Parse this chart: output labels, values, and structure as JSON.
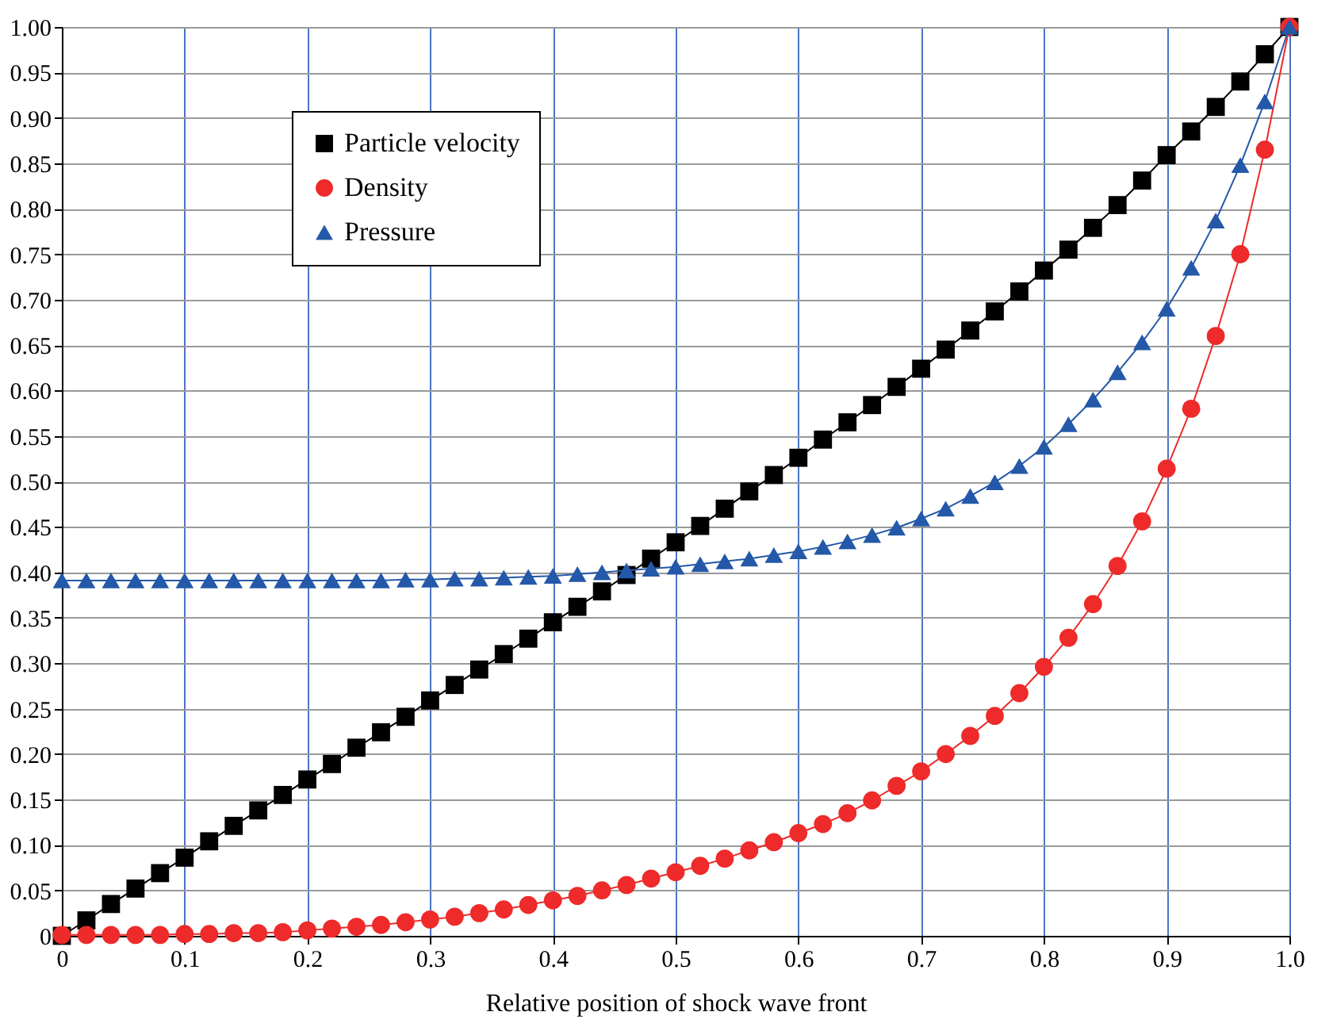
{
  "chart_data": {
    "type": "line",
    "xlabel": "Relative position of shock wave front",
    "x": [
      0,
      0.02,
      0.04,
      0.06,
      0.08,
      0.1,
      0.12,
      0.14,
      0.16,
      0.18,
      0.2,
      0.22,
      0.24,
      0.26,
      0.28,
      0.3,
      0.32,
      0.34,
      0.36,
      0.38,
      0.4,
      0.42,
      0.44,
      0.46,
      0.48,
      0.5,
      0.52,
      0.54,
      0.56,
      0.58,
      0.6,
      0.62,
      0.64,
      0.66,
      0.68,
      0.7,
      0.72,
      0.74,
      0.76,
      0.78,
      0.8,
      0.82,
      0.84,
      0.86,
      0.88,
      0.9,
      0.92,
      0.94,
      0.96,
      0.98,
      1.0
    ],
    "series": [
      {
        "name": "Particle velocity",
        "color": "#000000",
        "marker": "square",
        "values": [
          0,
          0.017,
          0.035,
          0.052,
          0.069,
          0.086,
          0.104,
          0.121,
          0.138,
          0.155,
          0.172,
          0.189,
          0.207,
          0.224,
          0.241,
          0.259,
          0.276,
          0.293,
          0.31,
          0.327,
          0.345,
          0.362,
          0.379,
          0.397,
          0.415,
          0.433,
          0.451,
          0.47,
          0.489,
          0.507,
          0.526,
          0.546,
          0.565,
          0.584,
          0.604,
          0.624,
          0.645,
          0.666,
          0.687,
          0.709,
          0.732,
          0.755,
          0.779,
          0.804,
          0.831,
          0.859,
          0.885,
          0.912,
          0.94,
          0.97,
          1.0
        ]
      },
      {
        "name": "Density",
        "color": "#ee2a2a",
        "marker": "circle",
        "values": [
          0.001,
          0.001,
          0.001,
          0.001,
          0.001,
          0.002,
          0.002,
          0.003,
          0.003,
          0.004,
          0.006,
          0.008,
          0.01,
          0.012,
          0.015,
          0.018,
          0.021,
          0.025,
          0.029,
          0.034,
          0.039,
          0.044,
          0.05,
          0.056,
          0.063,
          0.07,
          0.077,
          0.085,
          0.094,
          0.103,
          0.113,
          0.123,
          0.135,
          0.149,
          0.165,
          0.181,
          0.2,
          0.22,
          0.242,
          0.267,
          0.296,
          0.328,
          0.365,
          0.407,
          0.456,
          0.514,
          0.58,
          0.66,
          0.75,
          0.865,
          1.0
        ]
      },
      {
        "name": "Pressure",
        "color": "#2458a8",
        "marker": "triangle",
        "values": [
          0.391,
          0.391,
          0.391,
          0.391,
          0.391,
          0.391,
          0.391,
          0.391,
          0.391,
          0.391,
          0.391,
          0.391,
          0.391,
          0.391,
          0.392,
          0.392,
          0.393,
          0.393,
          0.394,
          0.395,
          0.396,
          0.398,
          0.4,
          0.402,
          0.404,
          0.406,
          0.409,
          0.412,
          0.415,
          0.419,
          0.423,
          0.428,
          0.434,
          0.441,
          0.449,
          0.459,
          0.47,
          0.484,
          0.499,
          0.517,
          0.538,
          0.563,
          0.59,
          0.62,
          0.653,
          0.69,
          0.735,
          0.787,
          0.848,
          0.918,
          1.0
        ]
      }
    ],
    "xlim": [
      0,
      1.0
    ],
    "ylim": [
      0,
      1.0
    ],
    "xticks": [
      0,
      0.1,
      0.2,
      0.3,
      0.4,
      0.5,
      0.6,
      0.7,
      0.8,
      0.9,
      {
        "value": 1.0,
        "label": "1.0"
      }
    ],
    "yticks": [
      0,
      {
        "value": 0.05,
        "label": "0.05"
      },
      {
        "value": 0.1,
        "label": "0.10"
      },
      {
        "value": 0.15,
        "label": "0.15"
      },
      {
        "value": 0.2,
        "label": "0.20"
      },
      {
        "value": 0.25,
        "label": "0.25"
      },
      {
        "value": 0.3,
        "label": "0.30"
      },
      {
        "value": 0.35,
        "label": "0.35"
      },
      {
        "value": 0.4,
        "label": "0.40"
      },
      {
        "value": 0.45,
        "label": "0.45"
      },
      {
        "value": 0.5,
        "label": "0.50"
      },
      {
        "value": 0.55,
        "label": "0.55"
      },
      {
        "value": 0.6,
        "label": "0.60"
      },
      {
        "value": 0.65,
        "label": "0.65"
      },
      {
        "value": 0.7,
        "label": "0.70"
      },
      {
        "value": 0.75,
        "label": "0.75"
      },
      {
        "value": 0.8,
        "label": "0.80"
      },
      {
        "value": 0.85,
        "label": "0.85"
      },
      {
        "value": 0.9,
        "label": "0.90"
      },
      {
        "value": 0.95,
        "label": "0.95"
      },
      {
        "value": 1.0,
        "label": "1.00"
      }
    ],
    "grid": true,
    "legend": "top left",
    "line_style": "solid"
  }
}
